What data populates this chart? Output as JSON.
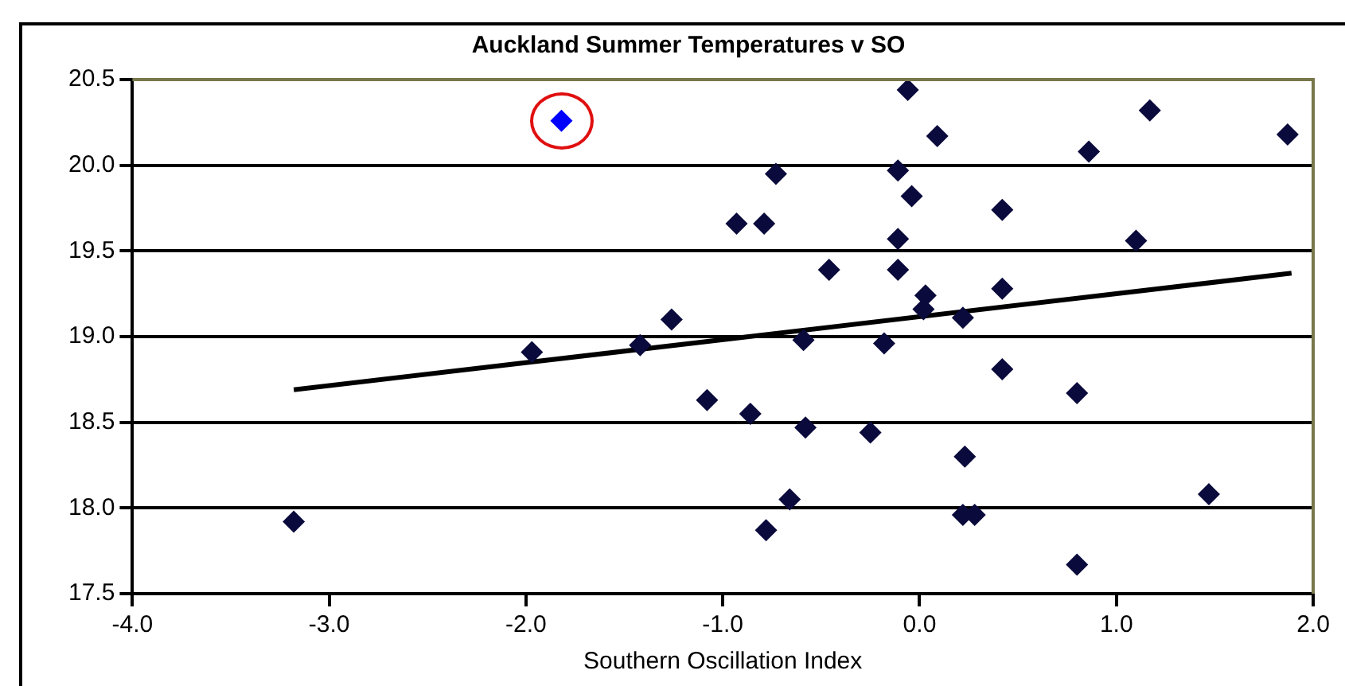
{
  "chart_data": {
    "type": "scatter",
    "title": "Auckland Summer Temperatures v SO",
    "xlabel": "Southern Oscillation Index",
    "xlim": [
      -4,
      2
    ],
    "ylim": [
      17.5,
      20.5
    ],
    "xticks": [
      {
        "value": -4,
        "label": "-4.0"
      },
      {
        "value": -3,
        "label": "-3.0"
      },
      {
        "value": -2,
        "label": "-2.0"
      },
      {
        "value": -1,
        "label": "-1.0"
      },
      {
        "value": 0,
        "label": "0.0"
      },
      {
        "value": 1,
        "label": "1.0"
      },
      {
        "value": 2,
        "label": "2.0"
      }
    ],
    "yticks": [
      17.5,
      {
        "value": 18,
        "label": "18.0"
      },
      18.5,
      {
        "value": 19,
        "label": "19.0"
      },
      19.5,
      {
        "value": 20,
        "label": "20.0"
      },
      20.5
    ],
    "grid": "y",
    "marker": "diamond",
    "legend": false,
    "series": [
      {
        "color": "#0a0a3c",
        "x": [
          -3.18,
          -1.97,
          -1.42,
          -1.26,
          -1.08,
          -0.93,
          -0.86,
          -0.79,
          -0.73,
          -0.78,
          -0.66,
          -0.59,
          -0.58,
          -0.46,
          -0.25,
          -0.18,
          -0.11,
          -0.11,
          -0.11,
          -0.06,
          -0.04,
          0.03,
          0.02,
          0.09,
          0.22,
          0.23,
          0.22,
          0.28,
          0.42,
          0.42,
          0.42,
          0.8,
          0.8,
          0.86,
          1.1,
          1.17,
          1.47,
          1.87
        ],
        "values": [
          17.92,
          18.91,
          18.95,
          19.1,
          18.63,
          19.66,
          18.55,
          19.66,
          19.95,
          17.87,
          18.05,
          18.98,
          18.47,
          19.39,
          18.44,
          18.96,
          19.97,
          19.57,
          19.39,
          20.44,
          19.82,
          19.24,
          19.16,
          20.17,
          19.11,
          18.3,
          17.96,
          17.96,
          19.74,
          19.28,
          18.81,
          18.67,
          17.67,
          20.08,
          19.56,
          20.32,
          18.08,
          20.18
        ]
      },
      {
        "color": "#0000ff",
        "x": [
          -1.82
        ],
        "values": [
          20.26
        ]
      },
      {
        "type": "line",
        "color": "#000000",
        "marker": "none",
        "x": [
          -3.18,
          1.89
        ],
        "values": [
          18.69,
          19.37
        ]
      }
    ]
  }
}
